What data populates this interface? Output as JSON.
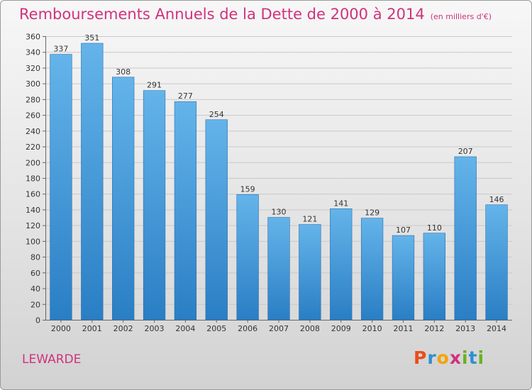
{
  "header": {
    "title": "Remboursements Annuels de la Dette de 2000 à 2014",
    "unit": "(en milliers d'€)"
  },
  "footer": {
    "commune": "LEWARDE",
    "logo_letters": [
      {
        "char": "P",
        "color": "#e94e1b"
      },
      {
        "char": "r",
        "color": "#2f8fd0"
      },
      {
        "char": "o",
        "color": "#f4a300"
      },
      {
        "char": "x",
        "color": "#d0327c"
      },
      {
        "char": "i",
        "color": "#6ab023"
      },
      {
        "char": "t",
        "color": "#2f8fd0"
      },
      {
        "char": "i",
        "color": "#6ab023"
      }
    ]
  },
  "colors": {
    "title": "#d0327c",
    "bar_top": "#64b4ea",
    "bar_bottom": "#2a7ec4"
  },
  "chart_data": {
    "type": "bar",
    "categories": [
      "2000",
      "2001",
      "2002",
      "2003",
      "2004",
      "2005",
      "2006",
      "2007",
      "2008",
      "2009",
      "2010",
      "2011",
      "2012",
      "2013",
      "2014"
    ],
    "values": [
      337,
      351,
      308,
      291,
      277,
      254,
      159,
      130,
      121,
      141,
      129,
      107,
      110,
      207,
      146
    ],
    "ylim": [
      0,
      360
    ],
    "yticks": [
      0,
      20,
      40,
      60,
      80,
      100,
      120,
      140,
      160,
      180,
      200,
      220,
      240,
      260,
      280,
      300,
      320,
      340,
      360
    ],
    "grid": true,
    "data_labels": true
  }
}
